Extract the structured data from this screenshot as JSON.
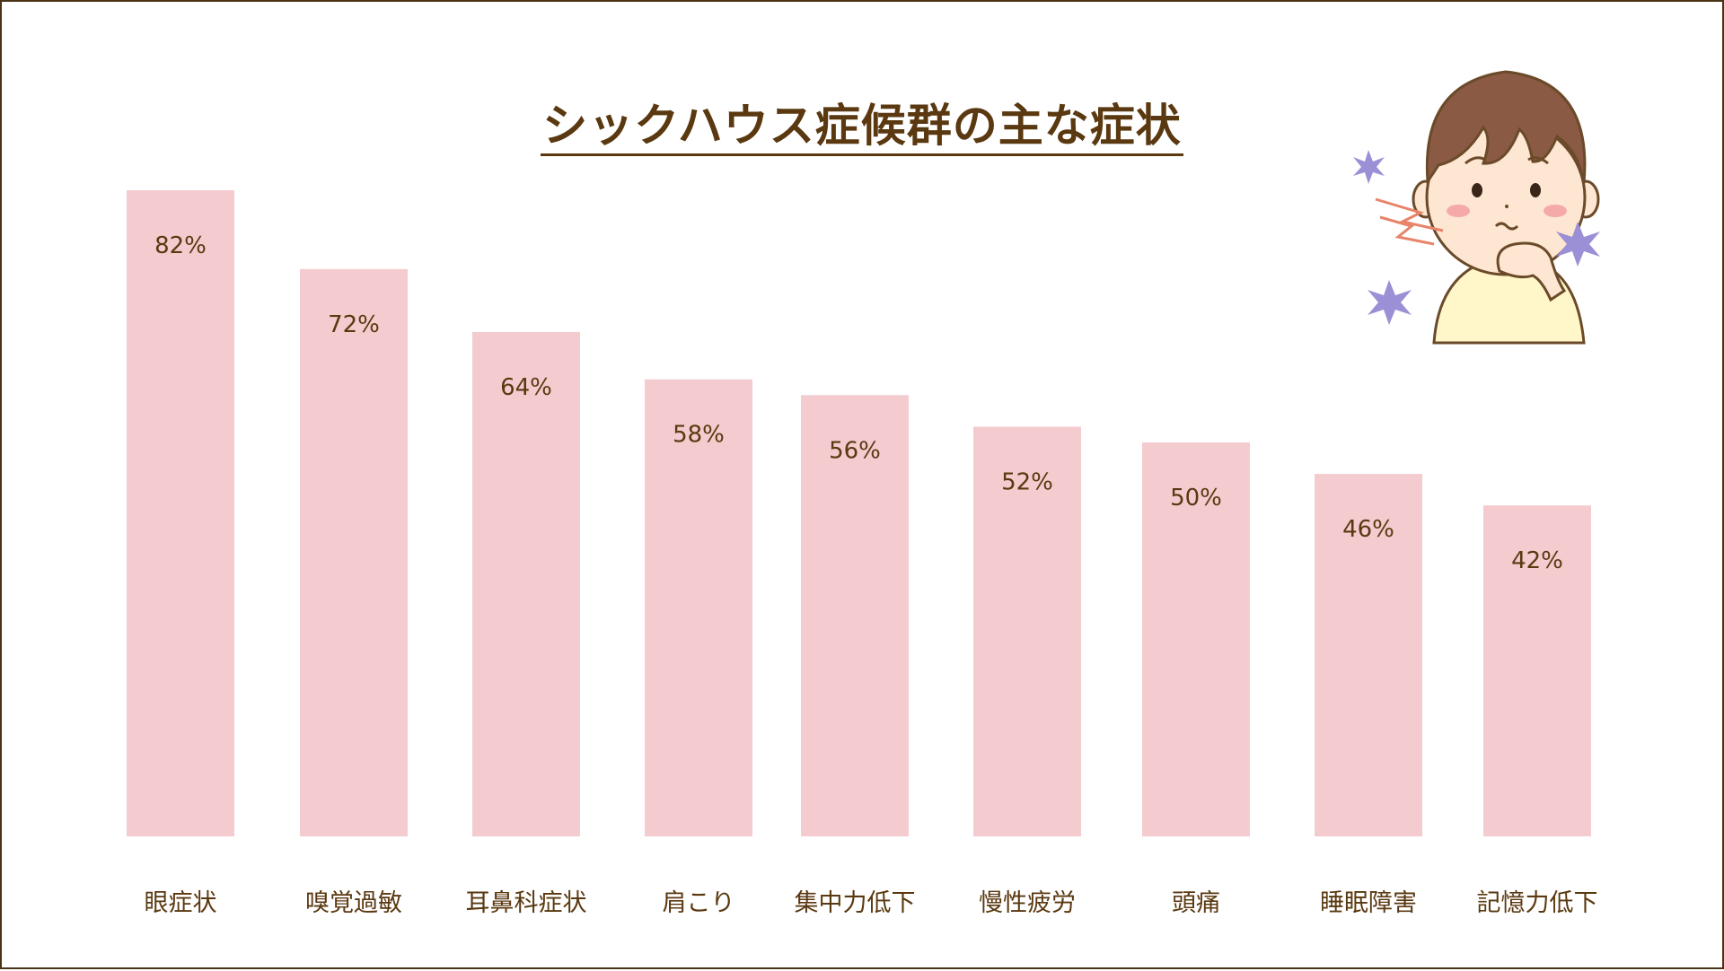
{
  "chart_data": {
    "type": "bar",
    "title": "シックハウス症候群の主な症状",
    "categories": [
      "眼症状",
      "嗅覚過敏",
      "耳鼻科症状",
      "肩こり",
      "集中力低下",
      "慢性疲労",
      "頭痛",
      "睡眠障害",
      "記憶力低下"
    ],
    "values": [
      82,
      72,
      64,
      58,
      56,
      52,
      50,
      46,
      42
    ],
    "value_labels": [
      "82%",
      "72%",
      "64%",
      "58%",
      "56%",
      "52%",
      "50%",
      "46%",
      "42%"
    ],
    "xlabel": "",
    "ylabel": "",
    "ylim": [
      0,
      100
    ],
    "grid": false,
    "legend": "none",
    "bar_color": "#f4cbcf",
    "text_color": "#5a3810"
  },
  "illustration": {
    "icon": "sick-boy-icon"
  }
}
